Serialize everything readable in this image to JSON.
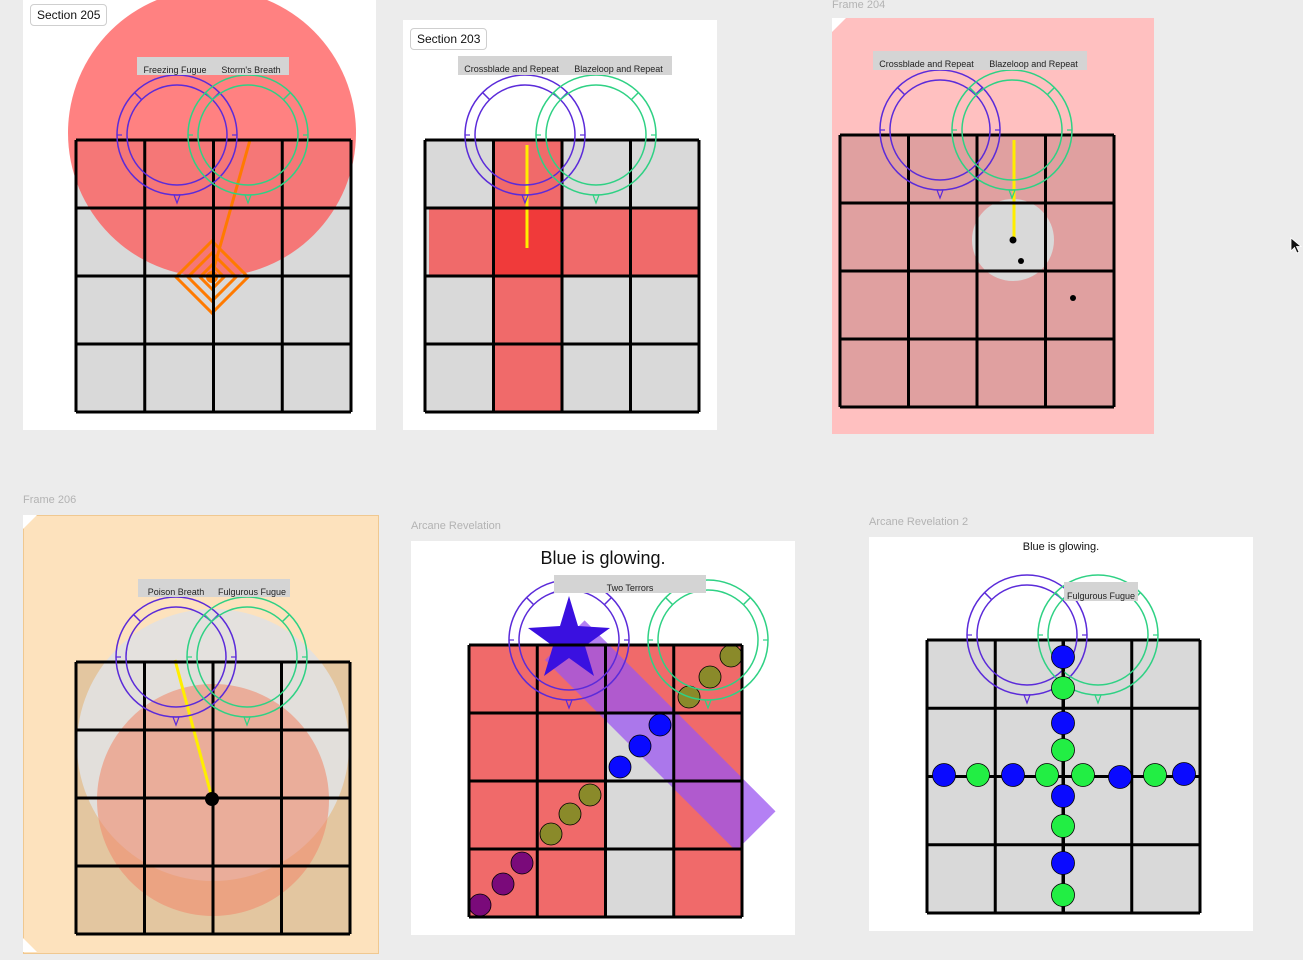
{
  "canvas": {
    "background": "#ececec"
  },
  "frames": [
    {
      "id": "section-205",
      "label": "Section 205",
      "label_style": "pill",
      "fill": "#ffffff",
      "tags": [
        "Freezing Fugue",
        "Storm's Breath"
      ]
    },
    {
      "id": "section-203",
      "label": "Section 203",
      "label_style": "pill",
      "fill": "#ffffff",
      "tags": [
        "Crossblade and Repeat",
        "Blazeloop and Repeat"
      ]
    },
    {
      "id": "frame-204",
      "label": "Frame 204",
      "label_style": "caption",
      "fill": "#ffc0c0",
      "tags": [
        "Crossblade and Repeat",
        "Blazeloop and Repeat"
      ]
    },
    {
      "id": "frame-206",
      "label": "Frame 206",
      "label_style": "caption",
      "fill": "#fde2bd",
      "tags": [
        "Poison Breath",
        "Fulgurous Fugue"
      ]
    },
    {
      "id": "arcane-revelation",
      "label": "Arcane Revelation",
      "label_style": "caption",
      "fill": "#ffffff",
      "headline": "Blue is glowing.",
      "tags": [
        "Two Terrors"
      ]
    },
    {
      "id": "arcane-revelation-2",
      "label": "Arcane Revelation 2",
      "label_style": "caption",
      "fill": "#ffffff",
      "headline": "Blue is glowing.",
      "tags": [
        "Fulgurous Fugue"
      ]
    }
  ],
  "colors": {
    "grid_cell": "#d9d9d9",
    "grid_line": "#000000",
    "purple_ring": "#5b2bd9",
    "green_ring": "#2fd184",
    "red_zone": "#f06a6a",
    "orange": "#ff7a00",
    "yellow": "#ffee00",
    "blue_orb": "#0a0aff",
    "green_orb": "#22ee44",
    "olive_orb": "#8a8a2a",
    "violet_orb": "#7a0a7a",
    "violet_beam": "#9b55f0",
    "tag_bg": "#d4d4d4"
  },
  "icons": [
    "cursor-arrow-icon",
    "star-icon",
    "diamond-target-icon"
  ]
}
